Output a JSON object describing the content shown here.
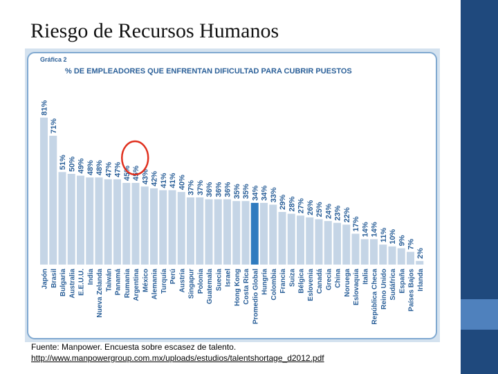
{
  "slide": {
    "title": "Riesgo de Recursos Humanos",
    "accent_dark": "#1f497d",
    "accent_light": "#4f81bd"
  },
  "chart_data": {
    "type": "bar",
    "label": "Gráfica 2",
    "title": "% DE EMPLEADORES QUE ENFRENTAN DIFICULTAD PARA CUBRIR PUESTOS",
    "categories": [
      "Japón",
      "Brasil",
      "Bulgaria",
      "Australia",
      "E.E.U.U.",
      "India",
      "Nueva Zelanda",
      "Taiwán",
      "Panamá",
      "Rumania",
      "Argentina",
      "México",
      "Alemania",
      "Turquía",
      "Perú",
      "Austria",
      "Singapur",
      "Polonia",
      "Guatemala",
      "Suecia",
      "Israel",
      "Hong Kong",
      "Costa Rica",
      "Promedio Global",
      "Hungría",
      "Colombia",
      "Francia",
      "Suiza",
      "Bélgica",
      "Eslovenia",
      "Canadá",
      "Grecia",
      "China",
      "Noruega",
      "Eslovaquia",
      "Italia",
      "República Checa",
      "Reino Unido",
      "Sudáfrica",
      "España",
      "Países Bajos",
      "Irlanda"
    ],
    "values": [
      81,
      71,
      51,
      50,
      49,
      48,
      48,
      47,
      47,
      45,
      45,
      43,
      42,
      41,
      41,
      40,
      37,
      37,
      36,
      36,
      36,
      35,
      35,
      34,
      34,
      33,
      29,
      28,
      27,
      26,
      25,
      24,
      23,
      22,
      17,
      14,
      14,
      11,
      10,
      9,
      7,
      2
    ],
    "value_labels": [
      "81%",
      "71%",
      "51%",
      "50%",
      "49%",
      "48%",
      "48%",
      "47%",
      "47%",
      "45%",
      "45%",
      "43%",
      "42%",
      "41%",
      "41%",
      "40%",
      "37%",
      "37%",
      "36%",
      "36%",
      "36%",
      "35%",
      "35%",
      "34%",
      "34%",
      "33%",
      "29%",
      "28%",
      "27%",
      "26%",
      "25%",
      "24%",
      "23%",
      "22%",
      "17%",
      "14%",
      "14%",
      "11%",
      "10%",
      "9%",
      "7%",
      "2%"
    ],
    "highlight_category": "Promedio Global",
    "circled_category": "México",
    "ylim": [
      0,
      100
    ],
    "grid": false,
    "bar_color": "#c5d5e6",
    "highlight_color": "#2f7bbf",
    "label_color": "#2a5f98",
    "circle_color": "#e0301e"
  },
  "source": {
    "line1": "Fuente: Manpower. Encuesta sobre escasez de talento.",
    "line2": "http://www.manpowergroup.com.mx/uploads/estudios/talentshortage_d2012.pdf"
  }
}
